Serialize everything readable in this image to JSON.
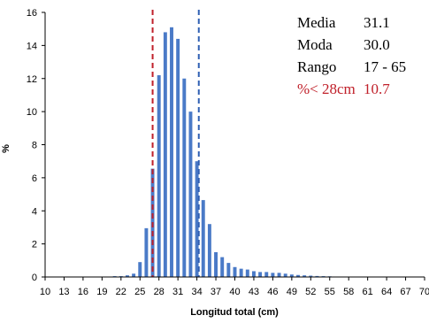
{
  "chart_data": {
    "type": "bar",
    "xlabel": "Longitud total (cm)",
    "ylabel": "%",
    "ylim": [
      0,
      16
    ],
    "yticks": [
      "0",
      "2",
      "4",
      "6",
      "8",
      "10",
      "12",
      "14",
      "16"
    ],
    "xticks": [
      "10",
      "13",
      "16",
      "19",
      "22",
      "25",
      "28",
      "31",
      "34",
      "37",
      "40",
      "43",
      "46",
      "49",
      "52",
      "55",
      "58",
      "61",
      "64",
      "67",
      "70"
    ],
    "x_range": [
      10,
      70
    ],
    "bar_color": "#4a7ac7",
    "x": [
      21,
      22,
      23,
      24,
      25,
      26,
      27,
      28,
      29,
      30,
      31,
      32,
      33,
      34,
      35,
      36,
      37,
      38,
      39,
      40,
      41,
      42,
      43,
      44,
      45,
      46,
      47,
      48,
      49,
      50,
      51,
      52,
      53,
      54,
      55
    ],
    "values": [
      0.05,
      0.05,
      0.1,
      0.2,
      0.9,
      2.95,
      6.55,
      12.2,
      14.8,
      15.1,
      14.4,
      12.0,
      10.0,
      7.0,
      4.65,
      3.2,
      1.5,
      1.2,
      0.85,
      0.6,
      0.5,
      0.45,
      0.35,
      0.3,
      0.3,
      0.25,
      0.25,
      0.2,
      0.15,
      0.12,
      0.1,
      0.08,
      0.06,
      0.05,
      0.04
    ],
    "reference_lines": [
      {
        "x": 27,
        "color": "#c0202a"
      },
      {
        "x": 34.3,
        "color": "#2f5fb3"
      }
    ],
    "annotations": [
      {
        "label": "Media",
        "value": "31.1",
        "color": "#000000"
      },
      {
        "label": "Moda",
        "value": "30.0",
        "color": "#000000"
      },
      {
        "label": "Rango",
        "value": "17 - 65",
        "color": "#000000"
      },
      {
        "label": "%< 28cm",
        "value": "10.7",
        "color": "#c0202a"
      }
    ]
  }
}
